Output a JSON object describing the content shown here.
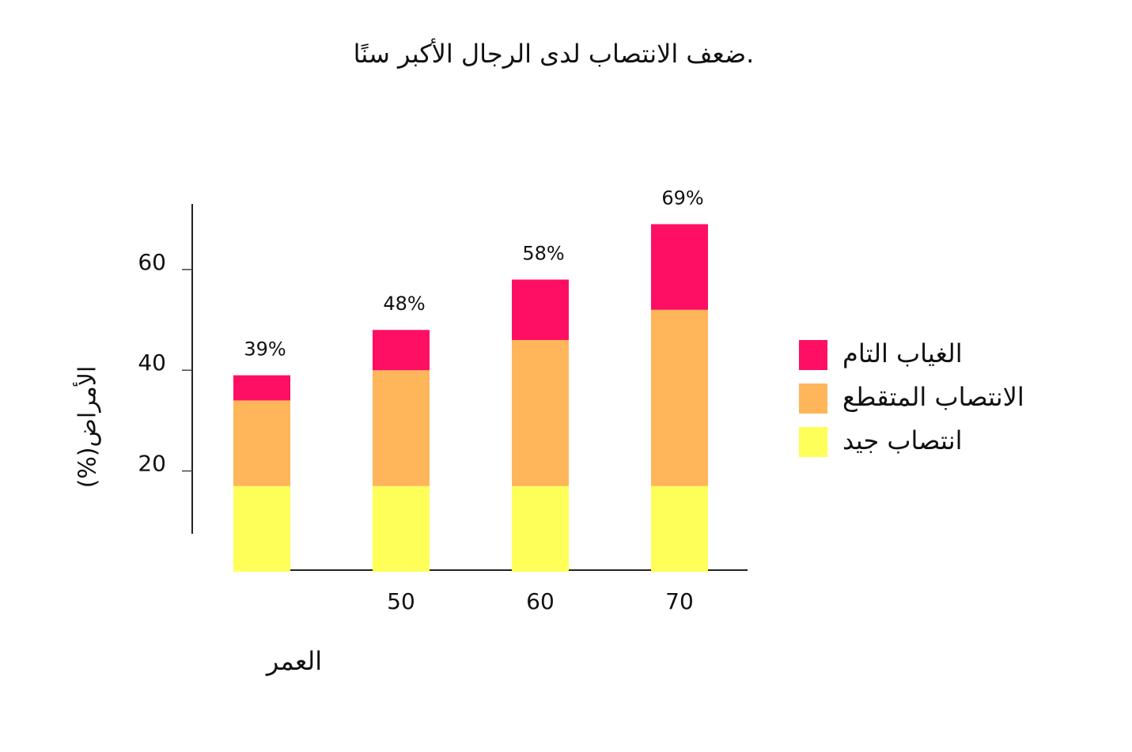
{
  "chart_data": {
    "type": "stacked_bar",
    "title": "ضعف الانتصاب لدى الرجال الأكبر سنًا.",
    "y_label": "(%)الأمراض",
    "x_label": "العمر",
    "categories": [
      null,
      "50",
      "60",
      "70"
    ],
    "series": [
      {
        "name": "انتصاب جيد",
        "color": "#ffff5a",
        "values": [
          17,
          17,
          17,
          17
        ]
      },
      {
        "name": "الانتصاب المتقطع",
        "color": "#ffb55a",
        "values": [
          17,
          23,
          29,
          35
        ]
      },
      {
        "name": "الغياب التام",
        "color": "#ff0f64",
        "values": [
          5,
          8,
          12,
          17
        ]
      }
    ],
    "total_labels": [
      "39%",
      "48%",
      "58%",
      "69%"
    ],
    "ylim": [
      0,
      73
    ],
    "yticks": [
      20,
      40,
      60
    ],
    "legend": "right"
  }
}
